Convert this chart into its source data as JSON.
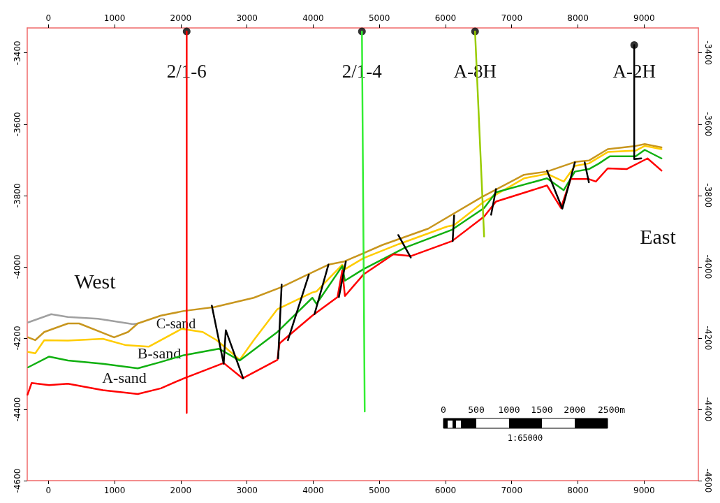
{
  "chart_data": {
    "type": "line",
    "xlim": [
      -320,
      9820
    ],
    "xticks": [
      0,
      1000,
      2000,
      3000,
      4000,
      5000,
      6000,
      7000,
      8000,
      9000
    ],
    "x2lim": [
      -320,
      9820
    ],
    "x2ticks": [
      0,
      1000,
      2000,
      3000,
      4000,
      5000,
      6000,
      7000,
      8000,
      9000
    ],
    "ylim": [
      -4600,
      -3330
    ],
    "yticks": [
      -3400,
      -3600,
      -3800,
      -4000,
      -4200,
      -4400,
      -4600
    ],
    "y2lim": [
      -4600,
      -3330
    ],
    "y2ticks": [
      -3400,
      -3600,
      -3800,
      -4000,
      -4200,
      -4400,
      -4600
    ],
    "grid": false,
    "marker": "none",
    "line_style": "solid",
    "series": [
      {
        "color": "#a0a0a0",
        "x": [
          -306,
          42,
          295,
          749,
          1277,
          1350
        ],
        "values": [
          -4156,
          -4133,
          -4141,
          -4146,
          -4161,
          -4159
        ]
      },
      {
        "color": "#c8961e",
        "x": [
          -306,
          -200,
          -63,
          295,
          464,
          992,
          1203,
          1350,
          1699,
          2047,
          2511,
          3102,
          3524,
          3914,
          4231,
          4473,
          5043,
          5739,
          6551,
          7185,
          7533,
          7955,
          8166,
          8451,
          8873,
          9010,
          9263
        ],
        "values": [
          -4198,
          -4206,
          -4183,
          -4159,
          -4159,
          -4198,
          -4183,
          -4159,
          -4137,
          -4124,
          -4113,
          -4087,
          -4057,
          -4022,
          -3994,
          -3985,
          -3939,
          -3893,
          -3804,
          -3742,
          -3733,
          -3706,
          -3702,
          -3670,
          -3661,
          -3656,
          -3665
        ]
      },
      {
        "color": "#ffcc00",
        "x": [
          -306,
          -200,
          -63,
          295,
          823,
          1171,
          1519,
          2015,
          2332,
          2543,
          2891,
          3102,
          3460,
          3988,
          4051,
          4440,
          4480,
          4758,
          5286,
          6024,
          6130,
          6583,
          7185,
          7533,
          7786,
          7955,
          8166,
          8451,
          8873,
          9010,
          9263
        ],
        "values": [
          -4239,
          -4243,
          -4206,
          -4207,
          -4202,
          -4220,
          -4224,
          -4174,
          -4183,
          -4206,
          -4261,
          -4206,
          -4119,
          -4072,
          -4069,
          -3994,
          -4007,
          -3976,
          -3937,
          -3887,
          -3883,
          -3817,
          -3752,
          -3739,
          -3761,
          -3717,
          -3710,
          -3678,
          -3674,
          -3661,
          -3670
        ]
      },
      {
        "color": "#10b010",
        "x": [
          -306,
          11,
          295,
          823,
          1350,
          1699,
          2047,
          2574,
          2891,
          3460,
          3988,
          4051,
          4440,
          4480,
          4758,
          5391,
          6098,
          6583,
          6763,
          7533,
          7786,
          7955,
          8166,
          8313,
          8482,
          8873,
          9010,
          9263
        ],
        "values": [
          -4282,
          -4252,
          -4263,
          -4272,
          -4285,
          -4267,
          -4248,
          -4230,
          -4263,
          -4183,
          -4087,
          -4104,
          -3998,
          -4039,
          -4007,
          -3946,
          -3896,
          -3835,
          -3791,
          -3752,
          -3785,
          -3733,
          -3726,
          -3711,
          -3690,
          -3690,
          -3672,
          -3696
        ]
      },
      {
        "color": "#ff0000",
        "x": [
          -316,
          -253,
          11,
          295,
          823,
          1350,
          1699,
          2047,
          2648,
          2933,
          3460,
          3492,
          3988,
          4368,
          4440,
          4480,
          4758,
          5212,
          5475,
          6098,
          6583,
          6763,
          7533,
          7744,
          7891,
          8166,
          8271,
          8451,
          8735,
          9052,
          9263
        ],
        "values": [
          -4359,
          -4326,
          -4332,
          -4328,
          -4346,
          -4357,
          -4341,
          -4313,
          -4270,
          -4313,
          -4261,
          -4215,
          -4137,
          -4085,
          -4010,
          -4082,
          -4022,
          -3965,
          -3970,
          -3928,
          -3859,
          -3817,
          -3772,
          -3835,
          -3754,
          -3754,
          -3761,
          -3724,
          -3726,
          -3696,
          -3730
        ]
      },
      {
        "color": "#000000",
        "x": [
          2469,
          2648,
          2680,
          2943
        ],
        "values": [
          -4109,
          -4272,
          -4178,
          -4313
        ]
      },
      {
        "color": "#000000",
        "x": [
          3471,
          3524
        ],
        "values": [
          -4257,
          -4050
        ]
      },
      {
        "color": "#000000",
        "x": [
          3619,
          3935
        ],
        "values": [
          -4206,
          -4022
        ]
      },
      {
        "color": "#000000",
        "x": [
          4020,
          4231
        ],
        "values": [
          -4133,
          -3994
        ]
      },
      {
        "color": "#000000",
        "x": [
          4389,
          4494
        ],
        "values": [
          -4085,
          -3985
        ]
      },
      {
        "color": "#000000",
        "x": [
          5286,
          5475
        ],
        "values": [
          -3911,
          -3974
        ]
      },
      {
        "color": "#000000",
        "x": [
          6108,
          6130
        ],
        "values": [
          -3928,
          -3856
        ]
      },
      {
        "color": "#000000",
        "x": [
          6689,
          6763
        ],
        "values": [
          -3854,
          -3782
        ]
      },
      {
        "color": "#000000",
        "x": [
          7533,
          7765,
          7955
        ],
        "values": [
          -3730,
          -3837,
          -3707
        ]
      },
      {
        "color": "#000000",
        "x": [
          8102,
          8166
        ],
        "values": [
          -3707,
          -3763
        ]
      },
      {
        "color": "#ff0000",
        "x": [
          2089,
          2089
        ],
        "values": [
          -3340,
          -4410
        ]
      },
      {
        "color": "#33ee33",
        "x": [
          4737,
          4779
        ],
        "values": [
          -3340,
          -4406
        ]
      },
      {
        "color": "#99cc00",
        "x": [
          6446,
          6583
        ],
        "values": [
          -3340,
          -3915
        ]
      },
      {
        "color": "#000000",
        "x": [
          8851,
          8851,
          8957
        ],
        "values": [
          -3378,
          -3698,
          -3696
        ]
      },
      {
        "type": "scatter",
        "marker": "circle",
        "color": "#000000",
        "x": [
          2089,
          4737,
          6446,
          8851
        ],
        "values": [
          -3340,
          -3340,
          -3340,
          -3378
        ]
      }
    ],
    "annotations": [
      {
        "text": "2/1-6",
        "x": 2089,
        "y": -3452
      },
      {
        "text": "2/1-4",
        "x": 4737,
        "y": -3452
      },
      {
        "text": "A-8H",
        "x": 6446,
        "y": -3452
      },
      {
        "text": "A-2H",
        "x": 8851,
        "y": -3452
      },
      "West",
      "East",
      "C-sand",
      "B-sand",
      "A-sand",
      "0",
      "500",
      "1000",
      "1500",
      "2000",
      "2500m",
      "1:65000"
    ]
  }
}
